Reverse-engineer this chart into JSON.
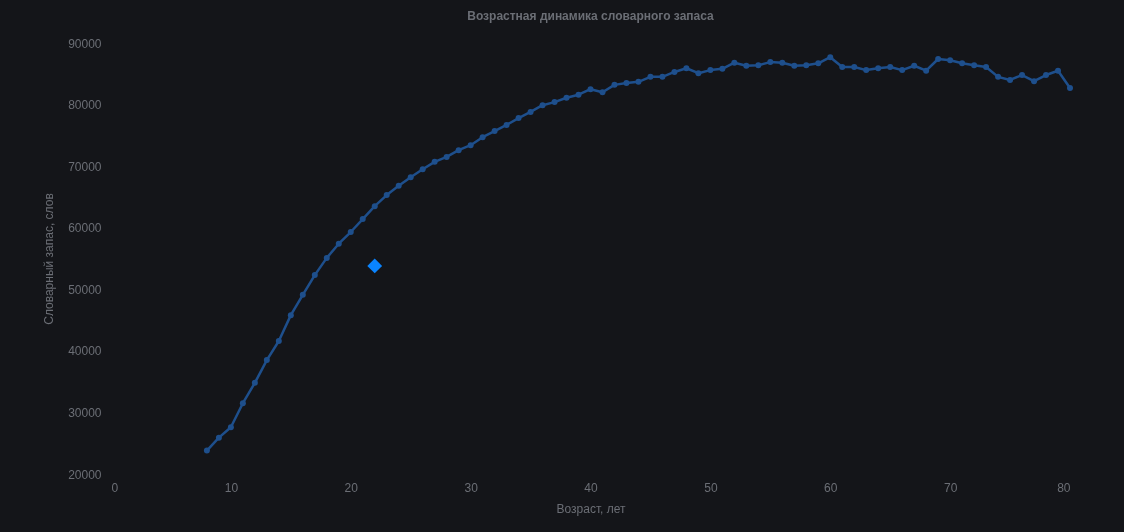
{
  "chart_data": {
    "type": "line",
    "title": "Возрастная динамика словарного запаса",
    "xlabel": "Возраст, лет",
    "ylabel": "Словарный запас, слов",
    "xlim": [
      0,
      80
    ],
    "xticks": [
      0,
      10,
      20,
      30,
      40,
      50,
      60,
      70,
      80
    ],
    "ylim": [
      20000,
      90000
    ],
    "yticks": [
      20000,
      30000,
      40000,
      50000,
      60000,
      70000,
      80000,
      90000
    ],
    "marker": "circle",
    "line_style": "solid",
    "series": [
      {
        "color": "#1e4f8c",
        "x": [
          8,
          9,
          10,
          11,
          12,
          13,
          14,
          15,
          16,
          17,
          18,
          19,
          20,
          21,
          22,
          23,
          24,
          25,
          26,
          27,
          28,
          29,
          30,
          31,
          32,
          33,
          34,
          35,
          36,
          37,
          38,
          39,
          40,
          41,
          42,
          43,
          44,
          45,
          46,
          47,
          48,
          49,
          50,
          51,
          52,
          53,
          54,
          55,
          56,
          57,
          58,
          59,
          60,
          61,
          62,
          63,
          64,
          65,
          66,
          67,
          68,
          69,
          70,
          71,
          72,
          73,
          74,
          75,
          76,
          77,
          78,
          79,
          80
        ],
        "values": [
          23800,
          25900,
          27600,
          31500,
          34800,
          38500,
          41600,
          45800,
          49100,
          52300,
          55100,
          57400,
          59300,
          61400,
          63500,
          65300,
          66800,
          68200,
          69500,
          70700,
          71500,
          72600,
          73400,
          74700,
          75700,
          76700,
          77800,
          78800,
          79900,
          80400,
          81100,
          81600,
          82500,
          82000,
          83200,
          83500,
          83700,
          84500,
          84500,
          85300,
          85900,
          85100,
          85600,
          85800,
          86800,
          86300,
          86400,
          86900,
          86800,
          86300,
          86400,
          86700,
          87700,
          86100,
          86100,
          85600,
          85900,
          86100,
          85600,
          86300,
          85500,
          87400,
          87200,
          86700,
          86400,
          86100,
          84500,
          84000,
          84800,
          83800,
          84800,
          85500,
          82700
        ]
      },
      {
        "type": "scatter",
        "marker": "diamond",
        "color": "#0a84ff",
        "x": [
          22
        ],
        "values": [
          53800
        ]
      }
    ]
  }
}
